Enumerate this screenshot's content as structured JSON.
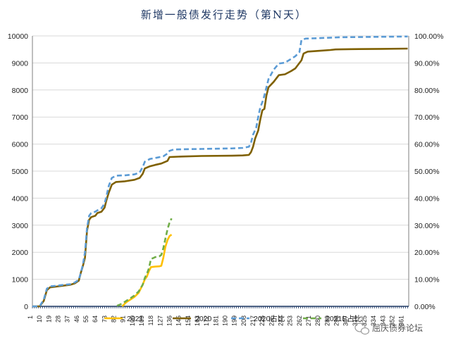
{
  "chart_data": {
    "type": "line",
    "title": "新增一般债发行走势（第N天）",
    "x_ticks": [
      1,
      10,
      19,
      28,
      37,
      46,
      55,
      64,
      73,
      82,
      91,
      100,
      109,
      118,
      127,
      136,
      145,
      154,
      163,
      172,
      181,
      190,
      199,
      208,
      217,
      226,
      235,
      244,
      253,
      262,
      271,
      280,
      289,
      298,
      307,
      316,
      325,
      334,
      343,
      352,
      361
    ],
    "ylim_left": [
      0,
      10000
    ],
    "yticks_left": [
      "0",
      "1000",
      "2000",
      "3000",
      "4000",
      "5000",
      "6000",
      "7000",
      "8000",
      "9000",
      "10000"
    ],
    "ylim_right": [
      0,
      100
    ],
    "yticks_right": [
      "0.00%",
      "10.00%",
      "20.00%",
      "30.00%",
      "40.00%",
      "50.00%",
      "60.00%",
      "70.00%",
      "80.00%",
      "90.00%",
      "100.00%"
    ],
    "series": [
      {
        "name": "2021",
        "axis": "left",
        "color": "#ffc000",
        "dash": false,
        "points": [
          [
            88,
            0
          ],
          [
            92,
            150
          ],
          [
            96,
            250
          ],
          [
            100,
            350
          ],
          [
            104,
            500
          ],
          [
            108,
            800
          ],
          [
            110,
            1000
          ],
          [
            112,
            1100
          ],
          [
            114,
            1300
          ],
          [
            116,
            1450
          ],
          [
            120,
            1470
          ],
          [
            124,
            1480
          ],
          [
            126,
            1500
          ],
          [
            128,
            1800
          ],
          [
            130,
            2200
          ],
          [
            132,
            2450
          ],
          [
            134,
            2600
          ],
          [
            136,
            2650
          ]
        ]
      },
      {
        "name": "2020",
        "axis": "left",
        "color": "#7f6000",
        "dash": false,
        "points": [
          [
            1,
            0
          ],
          [
            8,
            0
          ],
          [
            12,
            200
          ],
          [
            15,
            600
          ],
          [
            18,
            700
          ],
          [
            24,
            730
          ],
          [
            30,
            760
          ],
          [
            38,
            800
          ],
          [
            42,
            850
          ],
          [
            46,
            950
          ],
          [
            48,
            1250
          ],
          [
            50,
            1500
          ],
          [
            52,
            1800
          ],
          [
            54,
            2800
          ],
          [
            56,
            3200
          ],
          [
            58,
            3300
          ],
          [
            62,
            3350
          ],
          [
            64,
            3450
          ],
          [
            68,
            3500
          ],
          [
            71,
            3650
          ],
          [
            73,
            3950
          ],
          [
            75,
            4200
          ],
          [
            78,
            4500
          ],
          [
            82,
            4600
          ],
          [
            90,
            4620
          ],
          [
            100,
            4680
          ],
          [
            105,
            4750
          ],
          [
            108,
            4900
          ],
          [
            110,
            5100
          ],
          [
            115,
            5180
          ],
          [
            120,
            5230
          ],
          [
            126,
            5280
          ],
          [
            132,
            5380
          ],
          [
            134,
            5520
          ],
          [
            145,
            5540
          ],
          [
            165,
            5560
          ],
          [
            195,
            5570
          ],
          [
            205,
            5580
          ],
          [
            211,
            5600
          ],
          [
            213,
            5700
          ],
          [
            215,
            5900
          ],
          [
            217,
            6200
          ],
          [
            220,
            6500
          ],
          [
            222,
            6900
          ],
          [
            224,
            7250
          ],
          [
            226,
            7300
          ],
          [
            228,
            7800
          ],
          [
            230,
            8100
          ],
          [
            235,
            8300
          ],
          [
            240,
            8550
          ],
          [
            246,
            8580
          ],
          [
            252,
            8700
          ],
          [
            256,
            8800
          ],
          [
            262,
            9100
          ],
          [
            264,
            9350
          ],
          [
            268,
            9420
          ],
          [
            280,
            9450
          ],
          [
            290,
            9480
          ],
          [
            295,
            9500
          ],
          [
            310,
            9510
          ],
          [
            340,
            9520
          ],
          [
            365,
            9530
          ]
        ]
      },
      {
        "name": "2020占比",
        "axis": "right",
        "color": "#5b9bd5",
        "dash": true,
        "points": [
          [
            1,
            0
          ],
          [
            8,
            0
          ],
          [
            12,
            2.5
          ],
          [
            15,
            6.5
          ],
          [
            18,
            7.4
          ],
          [
            24,
            7.6
          ],
          [
            30,
            7.9
          ],
          [
            38,
            8.2
          ],
          [
            42,
            8.8
          ],
          [
            46,
            9.8
          ],
          [
            48,
            12.5
          ],
          [
            50,
            15.5
          ],
          [
            52,
            20
          ],
          [
            54,
            29
          ],
          [
            56,
            33.5
          ],
          [
            58,
            34.5
          ],
          [
            62,
            35
          ],
          [
            64,
            35.5
          ],
          [
            68,
            36.3
          ],
          [
            71,
            38
          ],
          [
            73,
            41
          ],
          [
            75,
            44.5
          ],
          [
            78,
            47.5
          ],
          [
            82,
            48.3
          ],
          [
            92,
            48.5
          ],
          [
            100,
            48.8
          ],
          [
            105,
            49.5
          ],
          [
            108,
            51.5
          ],
          [
            110,
            53.5
          ],
          [
            115,
            54.5
          ],
          [
            122,
            55
          ],
          [
            128,
            55.5
          ],
          [
            132,
            56.5
          ],
          [
            134,
            57.5
          ],
          [
            138,
            58
          ],
          [
            148,
            58.1
          ],
          [
            165,
            58.2
          ],
          [
            195,
            58.4
          ],
          [
            205,
            58.6
          ],
          [
            211,
            59
          ],
          [
            213,
            60.5
          ],
          [
            215,
            63.5
          ],
          [
            218,
            66
          ],
          [
            220,
            70
          ],
          [
            222,
            73.5
          ],
          [
            225,
            76.5
          ],
          [
            228,
            81
          ],
          [
            230,
            84
          ],
          [
            235,
            87.5
          ],
          [
            240,
            89.8
          ],
          [
            246,
            90.1
          ],
          [
            252,
            91.5
          ],
          [
            256,
            92.5
          ],
          [
            260,
            94
          ],
          [
            262,
            98.5
          ],
          [
            266,
            99
          ],
          [
            280,
            99.2
          ],
          [
            300,
            99.5
          ],
          [
            365,
            99.8
          ]
        ]
      },
      {
        "name": "2021E占比",
        "axis": "right",
        "color": "#70ad47",
        "dash": true,
        "points": [
          [
            83,
            0.2
          ],
          [
            88,
            1
          ],
          [
            92,
            2
          ],
          [
            96,
            3
          ],
          [
            100,
            4
          ],
          [
            104,
            5.5
          ],
          [
            108,
            8
          ],
          [
            110,
            10.5
          ],
          [
            112,
            12
          ],
          [
            114,
            14
          ],
          [
            116,
            17.5
          ],
          [
            118,
            17.8
          ],
          [
            120,
            18.2
          ],
          [
            124,
            18.5
          ],
          [
            126,
            19
          ],
          [
            128,
            21.5
          ],
          [
            130,
            25
          ],
          [
            132,
            28.5
          ],
          [
            134,
            31
          ],
          [
            136,
            32.5
          ]
        ]
      }
    ],
    "legend": [
      "2021",
      "2020",
      "2020占比",
      "2021E占比"
    ],
    "legend_position": "bottom"
  },
  "watermark": "屈庆债券论坛"
}
